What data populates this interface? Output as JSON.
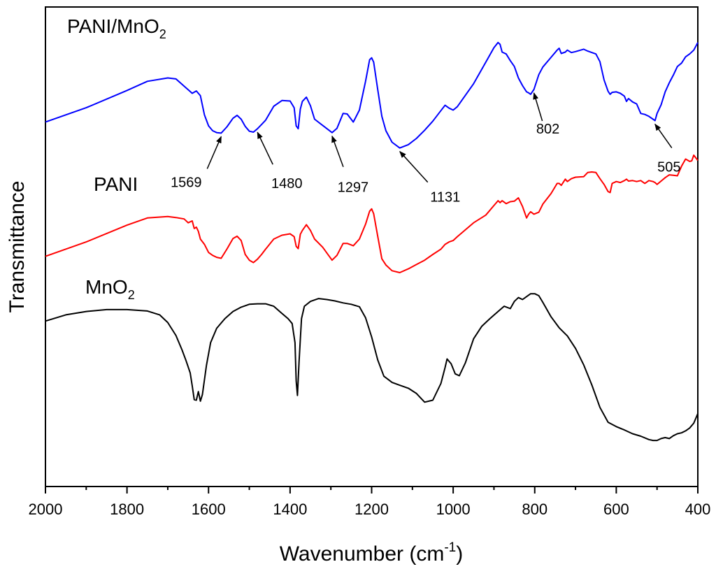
{
  "chart_data": {
    "type": "line",
    "title": "",
    "xlabel": "Wavenumber (cm",
    "xlabel_sup": "-1",
    "xlabel_close": ")",
    "ylabel": "Transmittance",
    "xlim": [
      2000,
      400
    ],
    "x_reversed": true,
    "ylim": [
      0,
      100
    ],
    "y_ticks_shown": false,
    "x_ticks": [
      2000,
      1800,
      1600,
      1400,
      1200,
      1000,
      800,
      600,
      400
    ],
    "x_tick_labels": [
      "2000",
      "1800",
      "1600",
      "1400",
      "1200",
      "1000",
      "800",
      "600",
      "400"
    ],
    "series": [
      {
        "name": "PANI/MnO2",
        "label_main": "PANI/MnO",
        "label_sub": "2",
        "color": "#0000ff",
        "x": [
          2000,
          1900,
          1800,
          1750,
          1700,
          1680,
          1660,
          1640,
          1630,
          1620,
          1610,
          1600,
          1590,
          1580,
          1569,
          1555,
          1540,
          1530,
          1520,
          1510,
          1500,
          1490,
          1480,
          1470,
          1460,
          1440,
          1420,
          1400,
          1390,
          1385,
          1380,
          1375,
          1370,
          1360,
          1350,
          1340,
          1320,
          1297,
          1285,
          1270,
          1260,
          1245,
          1230,
          1215,
          1205,
          1200,
          1195,
          1185,
          1175,
          1165,
          1150,
          1131,
          1110,
          1090,
          1070,
          1050,
          1030,
          1020,
          1010,
          1000,
          990,
          950,
          920,
          900,
          890,
          885,
          880,
          870,
          860,
          850,
          840,
          830,
          820,
          815,
          810,
          802,
          790,
          780,
          760,
          745,
          740,
          735,
          725,
          720,
          710,
          700,
          680,
          670,
          650,
          640,
          630,
          620,
          615,
          610,
          600,
          590,
          580,
          575,
          570,
          560,
          550,
          540,
          530,
          520,
          510,
          505,
          500,
          490,
          480,
          470,
          460,
          450,
          440,
          430,
          420,
          410,
          400
        ],
        "y": [
          76.0,
          79.0,
          82.6,
          84.5,
          85.2,
          85.0,
          83.5,
          82.0,
          82.5,
          81.5,
          77.5,
          75.2,
          74.2,
          73.8,
          73.7,
          75.0,
          76.8,
          77.4,
          76.6,
          75.1,
          74.1,
          73.9,
          74.6,
          75.5,
          76.4,
          79.3,
          80.5,
          80.4,
          79.0,
          75.2,
          74.6,
          78.7,
          80.3,
          81.2,
          79.4,
          76.6,
          75.3,
          73.8,
          74.7,
          77.8,
          77.7,
          76.0,
          78.5,
          84.5,
          89.0,
          89.4,
          88.5,
          82.8,
          77.2,
          74.2,
          71.8,
          70.6,
          71.3,
          72.6,
          74.3,
          76.2,
          78.4,
          79.5,
          78.9,
          78.5,
          79.2,
          84.0,
          88.5,
          91.5,
          92.6,
          92.2,
          90.6,
          90.2,
          88.8,
          87.6,
          85.2,
          83.6,
          82.3,
          82.1,
          81.8,
          82.8,
          85.9,
          87.5,
          89.5,
          91.0,
          91.4,
          90.3,
          90.6,
          91.0,
          90.5,
          90.7,
          91.2,
          90.8,
          90.2,
          88.6,
          84.8,
          82.4,
          81.8,
          82.2,
          82.3,
          82.0,
          81.4,
          80.3,
          80.9,
          80.2,
          79.8,
          77.8,
          77.6,
          77.2,
          76.6,
          76.3,
          77.8,
          79.6,
          82.3,
          84.2,
          85.8,
          87.6,
          88.3,
          89.6,
          90.2,
          91.0,
          92.6
        ]
      },
      {
        "name": "PANI",
        "label_main": "PANI",
        "label_sub": "",
        "color": "#ff0000",
        "x": [
          2000,
          1900,
          1800,
          1750,
          1700,
          1680,
          1660,
          1650,
          1640,
          1635,
          1630,
          1625,
          1620,
          1610,
          1600,
          1590,
          1580,
          1569,
          1555,
          1540,
          1530,
          1520,
          1510,
          1500,
          1490,
          1480,
          1470,
          1460,
          1440,
          1420,
          1400,
          1390,
          1385,
          1380,
          1375,
          1370,
          1360,
          1350,
          1340,
          1320,
          1297,
          1285,
          1270,
          1260,
          1245,
          1230,
          1215,
          1205,
          1200,
          1195,
          1185,
          1175,
          1165,
          1150,
          1131,
          1110,
          1090,
          1070,
          1050,
          1030,
          1020,
          1010,
          1000,
          990,
          950,
          920,
          900,
          890,
          885,
          880,
          870,
          860,
          850,
          840,
          830,
          820,
          815,
          810,
          802,
          790,
          780,
          760,
          745,
          740,
          735,
          725,
          720,
          710,
          700,
          680,
          670,
          660,
          650,
          640,
          630,
          620,
          615,
          610,
          600,
          590,
          580,
          575,
          570,
          560,
          550,
          540,
          530,
          520,
          510,
          505,
          500,
          490,
          480,
          470,
          460,
          450,
          440,
          430,
          420,
          415,
          410,
          400
        ],
        "y": [
          48.0,
          51.0,
          54.5,
          56.0,
          56.3,
          56.1,
          55.8,
          55.0,
          55.4,
          53.8,
          54.1,
          53.2,
          51.6,
          50.5,
          48.8,
          48.2,
          47.8,
          47.6,
          49.5,
          51.7,
          52.2,
          51.3,
          48.4,
          47.2,
          46.7,
          47.4,
          48.4,
          49.5,
          51.6,
          52.4,
          52.7,
          52.1,
          50.1,
          49.6,
          52.6,
          53.4,
          54.6,
          53.4,
          51.6,
          49.9,
          47.2,
          48.2,
          50.7,
          50.7,
          50.2,
          51.6,
          54.7,
          57.4,
          57.9,
          56.9,
          52.2,
          47.5,
          46.2,
          45.0,
          44.6,
          45.4,
          46.3,
          47.2,
          48.4,
          49.5,
          50.5,
          51.0,
          51.3,
          52.1,
          55.0,
          56.6,
          58.6,
          59.6,
          59.2,
          59.6,
          59.0,
          59.4,
          59.5,
          60.2,
          58.4,
          56.0,
          56.8,
          57.3,
          56.8,
          57.2,
          58.9,
          61.1,
          63.2,
          63.2,
          62.8,
          64.1,
          63.6,
          64.2,
          64.5,
          64.6,
          65.5,
          65.6,
          65.5,
          64.2,
          63.0,
          61.5,
          61.3,
          63.2,
          63.6,
          63.4,
          63.8,
          64.1,
          63.7,
          63.8,
          63.6,
          63.8,
          63.2,
          63.8,
          63.6,
          63.4,
          63.0,
          63.7,
          64.4,
          65.0,
          64.9,
          64.8,
          66.8,
          68.3,
          67.8,
          67.9,
          69.1,
          68.0
        ]
      },
      {
        "name": "MnO2",
        "label_main": "MnO",
        "label_sub": "2",
        "color": "#000000",
        "x": [
          2000,
          1950,
          1900,
          1850,
          1800,
          1750,
          1720,
          1700,
          1680,
          1665,
          1655,
          1645,
          1640,
          1635,
          1630,
          1625,
          1620,
          1615,
          1605,
          1595,
          1580,
          1560,
          1540,
          1520,
          1500,
          1480,
          1460,
          1440,
          1420,
          1405,
          1395,
          1388,
          1385,
          1382,
          1378,
          1372,
          1365,
          1350,
          1330,
          1310,
          1290,
          1270,
          1250,
          1230,
          1215,
          1200,
          1185,
          1170,
          1150,
          1130,
          1110,
          1090,
          1070,
          1050,
          1030,
          1020,
          1015,
          1005,
          995,
          985,
          970,
          950,
          930,
          910,
          890,
          875,
          860,
          850,
          840,
          830,
          820,
          810,
          800,
          790,
          780,
          760,
          740,
          720,
          700,
          680,
          660,
          640,
          620,
          600,
          580,
          560,
          540,
          520,
          510,
          500,
          490,
          480,
          470,
          460,
          450,
          440,
          430,
          420,
          410,
          400
        ],
        "y": [
          34.5,
          35.8,
          36.5,
          36.9,
          36.9,
          36.6,
          35.8,
          34.2,
          31.5,
          28.5,
          26.2,
          23.7,
          21.0,
          18.1,
          18.0,
          19.8,
          17.8,
          19.2,
          25.3,
          30.0,
          33.0,
          35.0,
          36.5,
          37.4,
          38.0,
          38.1,
          38.1,
          37.6,
          36.1,
          35.0,
          34.0,
          30.0,
          22.0,
          19.0,
          26.0,
          35.0,
          37.6,
          38.6,
          39.2,
          39.0,
          38.7,
          38.3,
          38.0,
          37.5,
          35.2,
          31.2,
          26.4,
          23.0,
          21.7,
          21.1,
          20.5,
          19.4,
          17.6,
          18.0,
          21.5,
          24.8,
          26.6,
          25.6,
          23.5,
          23.1,
          25.8,
          30.8,
          33.4,
          35.0,
          36.5,
          37.6,
          37.1,
          38.6,
          39.4,
          39.0,
          39.6,
          40.2,
          40.2,
          39.8,
          38.4,
          35.4,
          33.1,
          31.4,
          28.8,
          25.4,
          21.2,
          16.5,
          13.4,
          12.5,
          11.8,
          11.0,
          10.5,
          9.8,
          9.6,
          9.6,
          10.0,
          10.2,
          10.0,
          10.6,
          11.0,
          11.2,
          11.6,
          12.2,
          13.2,
          15.2
        ]
      }
    ],
    "annotations": [
      {
        "label": "1569",
        "series": 0,
        "x": 1569
      },
      {
        "label": "1480",
        "series": 0,
        "x": 1480
      },
      {
        "label": "1297",
        "series": 0,
        "x": 1297
      },
      {
        "label": "1131",
        "series": 0,
        "x": 1131
      },
      {
        "label": "802",
        "series": 0,
        "x": 802
      },
      {
        "label": "505",
        "series": 0,
        "x": 505
      }
    ]
  }
}
